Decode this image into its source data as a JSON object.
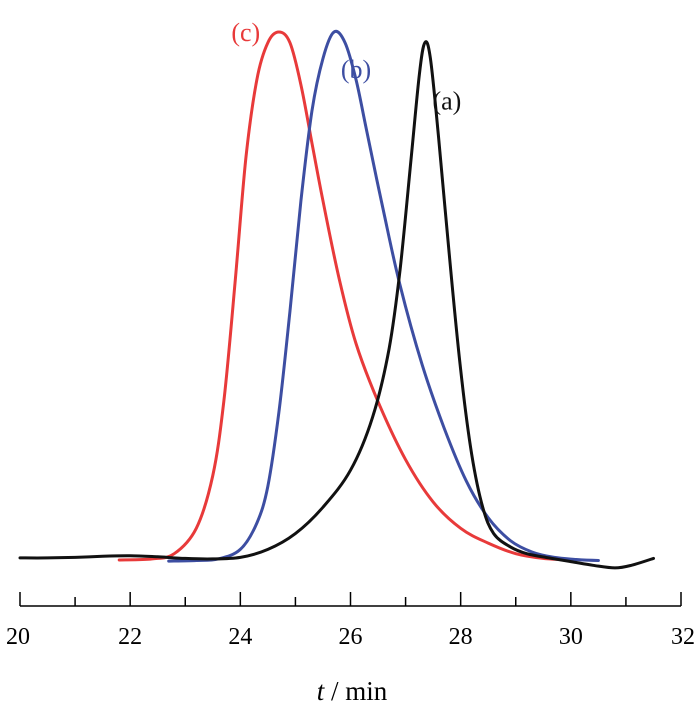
{
  "chart_data": {
    "type": "line",
    "xlabel_var": "t",
    "xlabel_rest": " / min",
    "ylabel": "",
    "xlim": [
      20,
      32
    ],
    "ylim": [
      -0.02,
      1.0
    ],
    "x_ticks": [
      20,
      22,
      24,
      26,
      28,
      30,
      32
    ],
    "grid": false,
    "legend": "inline labels near peaks",
    "series": [
      {
        "name": "(c)",
        "color": "#e83a3a",
        "label_at": [
          24.1,
          1.0
        ],
        "points": [
          [
            21.8,
            0.0
          ],
          [
            22.4,
            0.002
          ],
          [
            22.8,
            0.012
          ],
          [
            23.2,
            0.06
          ],
          [
            23.5,
            0.16
          ],
          [
            23.7,
            0.3
          ],
          [
            23.9,
            0.52
          ],
          [
            24.1,
            0.76
          ],
          [
            24.3,
            0.91
          ],
          [
            24.5,
            0.98
          ],
          [
            24.7,
            1.0
          ],
          [
            24.9,
            0.98
          ],
          [
            25.1,
            0.9
          ],
          [
            25.3,
            0.79
          ],
          [
            25.5,
            0.68
          ],
          [
            25.8,
            0.53
          ],
          [
            26.1,
            0.41
          ],
          [
            26.5,
            0.3
          ],
          [
            27.0,
            0.19
          ],
          [
            27.5,
            0.11
          ],
          [
            28.0,
            0.06
          ],
          [
            28.5,
            0.032
          ],
          [
            29.0,
            0.012
          ],
          [
            29.5,
            0.003
          ],
          [
            30.0,
            0.0
          ]
        ]
      },
      {
        "name": "(b)",
        "color": "#3d4ea2",
        "label_at": [
          26.1,
          0.93
        ],
        "points": [
          [
            22.7,
            -0.002
          ],
          [
            23.2,
            -0.001
          ],
          [
            23.6,
            0.002
          ],
          [
            24.0,
            0.02
          ],
          [
            24.3,
            0.07
          ],
          [
            24.5,
            0.14
          ],
          [
            24.7,
            0.28
          ],
          [
            24.9,
            0.47
          ],
          [
            25.1,
            0.68
          ],
          [
            25.3,
            0.85
          ],
          [
            25.5,
            0.95
          ],
          [
            25.7,
            1.0
          ],
          [
            25.9,
            0.98
          ],
          [
            26.1,
            0.91
          ],
          [
            26.3,
            0.81
          ],
          [
            26.6,
            0.66
          ],
          [
            26.9,
            0.52
          ],
          [
            27.3,
            0.37
          ],
          [
            27.7,
            0.25
          ],
          [
            28.1,
            0.15
          ],
          [
            28.5,
            0.08
          ],
          [
            28.9,
            0.037
          ],
          [
            29.3,
            0.015
          ],
          [
            29.7,
            0.005
          ],
          [
            30.1,
            0.001
          ],
          [
            30.5,
            -0.001
          ]
        ]
      },
      {
        "name": "(a)",
        "color": "#111111",
        "label_at": [
          27.75,
          0.87
        ],
        "points": [
          [
            20.0,
            0.004
          ],
          [
            20.5,
            0.004
          ],
          [
            21.0,
            0.005
          ],
          [
            21.5,
            0.007
          ],
          [
            22.0,
            0.008
          ],
          [
            22.5,
            0.006
          ],
          [
            23.0,
            0.003
          ],
          [
            23.5,
            0.002
          ],
          [
            24.0,
            0.005
          ],
          [
            24.5,
            0.02
          ],
          [
            25.0,
            0.05
          ],
          [
            25.5,
            0.1
          ],
          [
            26.0,
            0.17
          ],
          [
            26.4,
            0.27
          ],
          [
            26.7,
            0.4
          ],
          [
            26.9,
            0.55
          ],
          [
            27.1,
            0.76
          ],
          [
            27.25,
            0.92
          ],
          [
            27.35,
            0.98
          ],
          [
            27.45,
            0.95
          ],
          [
            27.6,
            0.8
          ],
          [
            27.8,
            0.57
          ],
          [
            28.0,
            0.36
          ],
          [
            28.2,
            0.2
          ],
          [
            28.4,
            0.1
          ],
          [
            28.6,
            0.05
          ],
          [
            28.9,
            0.025
          ],
          [
            29.2,
            0.012
          ],
          [
            29.6,
            0.004
          ],
          [
            30.0,
            -0.003
          ],
          [
            30.4,
            -0.01
          ],
          [
            30.8,
            -0.015
          ],
          [
            31.1,
            -0.01
          ],
          [
            31.5,
            0.003
          ]
        ]
      }
    ]
  }
}
